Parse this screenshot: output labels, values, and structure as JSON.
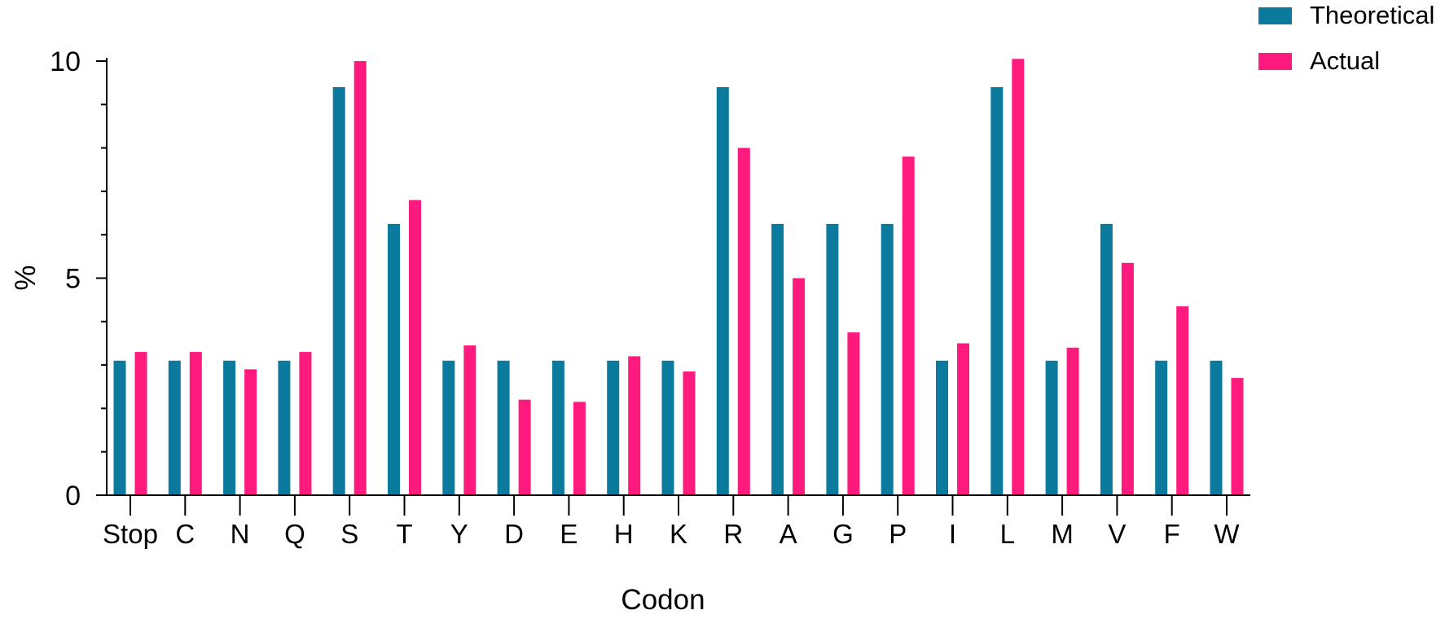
{
  "chart_data": {
    "type": "bar",
    "title": "",
    "xlabel": "Codon",
    "ylabel": "%",
    "ylim": [
      0,
      10
    ],
    "yticks": [
      {
        "value": 0,
        "label": "0"
      },
      {
        "value": 5,
        "label": "5"
      },
      {
        "value": 10,
        "label": "10"
      }
    ],
    "minor_ticks": [
      1,
      2,
      3,
      4,
      6,
      7,
      8,
      9
    ],
    "legend_position": "top-right",
    "categories": [
      "Stop",
      "C",
      "N",
      "Q",
      "S",
      "T",
      "Y",
      "D",
      "E",
      "H",
      "K",
      "R",
      "A",
      "G",
      "P",
      "I",
      "L",
      "M",
      "V",
      "F",
      "W"
    ],
    "series": [
      {
        "name": "Theoretical",
        "color": "#0b7a9c",
        "values": [
          3.1,
          3.1,
          3.1,
          3.1,
          9.4,
          6.25,
          3.1,
          3.1,
          3.1,
          3.1,
          3.1,
          9.4,
          6.25,
          6.25,
          6.25,
          3.1,
          9.4,
          3.1,
          6.25,
          3.1,
          3.1
        ]
      },
      {
        "name": "Actual",
        "color": "#ff1a7d",
        "values": [
          3.3,
          3.3,
          2.9,
          3.3,
          10.0,
          6.8,
          3.45,
          2.2,
          2.15,
          3.2,
          2.85,
          8.0,
          5.0,
          3.75,
          7.8,
          3.5,
          10.05,
          3.4,
          5.35,
          4.35,
          2.7
        ]
      }
    ]
  }
}
